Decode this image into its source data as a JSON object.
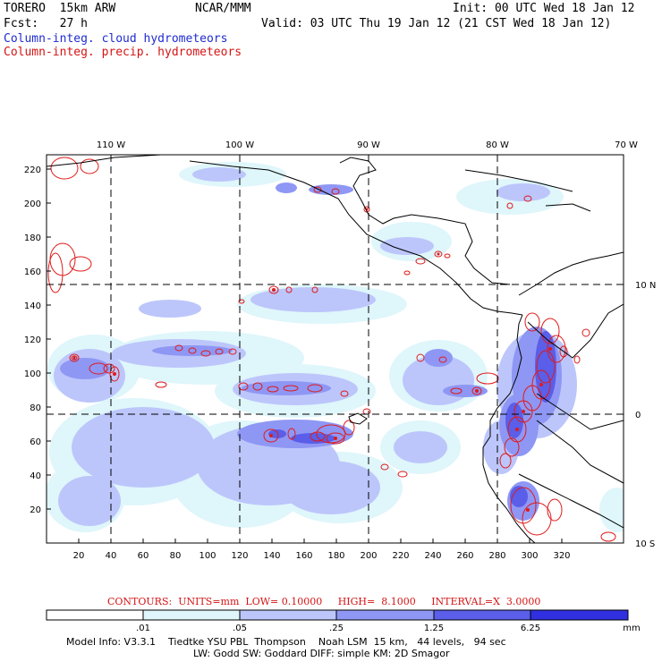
{
  "header": {
    "model": "TORERO  15km ARW",
    "org": "NCAR/MMM",
    "init": "Init: 00 UTC Wed 18 Jan 12",
    "fcst": "Fcst:   27 h",
    "valid": "Valid: 03 UTC Thu 19 Jan 12 (21 CST Wed 18 Jan 12)",
    "field1": "Column-integ. cloud hydrometeors",
    "field2": "Column-integ. precip. hydrometeors"
  },
  "colors": {
    "cloud_label": "#1f2bd0",
    "precip_label": "#d41414",
    "shade_1": "#dff6fb",
    "shade_2": "#bcc6fb",
    "shade_3": "#8f97f4",
    "shade_4": "#5a5ee8",
    "shade_5": "#3030e0",
    "contour": "#e01a1a",
    "coast": "#000000"
  },
  "map": {
    "lon_labels": [
      "110 W",
      "100 W",
      "90 W",
      "80 W",
      "70 W"
    ],
    "lat_labels": [
      "10 N",
      "0",
      "10 S"
    ],
    "x_ticks": [
      "20",
      "40",
      "60",
      "80",
      "100",
      "120",
      "140",
      "160",
      "180",
      "200",
      "220",
      "240",
      "260",
      "280",
      "300",
      "320"
    ],
    "y_ticks": [
      "220",
      "200",
      "180",
      "160",
      "140",
      "120",
      "100",
      "80",
      "60",
      "40",
      "20"
    ]
  },
  "contours": {
    "text": "CONTOURS:  UNITS=mm  LOW= 0.10000     HIGH=  8.1000     INTERVAL=X  3.0000",
    "units": "mm",
    "low": 0.1,
    "high": 8.1,
    "interval_factor": 3.0
  },
  "colorbar": {
    "labels": [
      ".01",
      ".05",
      ".25",
      "1.25",
      "6.25"
    ],
    "unit": "mm"
  },
  "footer": {
    "line1": "Model Info: V3.3.1    Tiedtke YSU PBL  Thompson    Noah LSM  15 km,   44 levels,   94 sec",
    "line2": "LW: Godd SW: Goddard DIFF: simple KM: 2D Smagor"
  }
}
